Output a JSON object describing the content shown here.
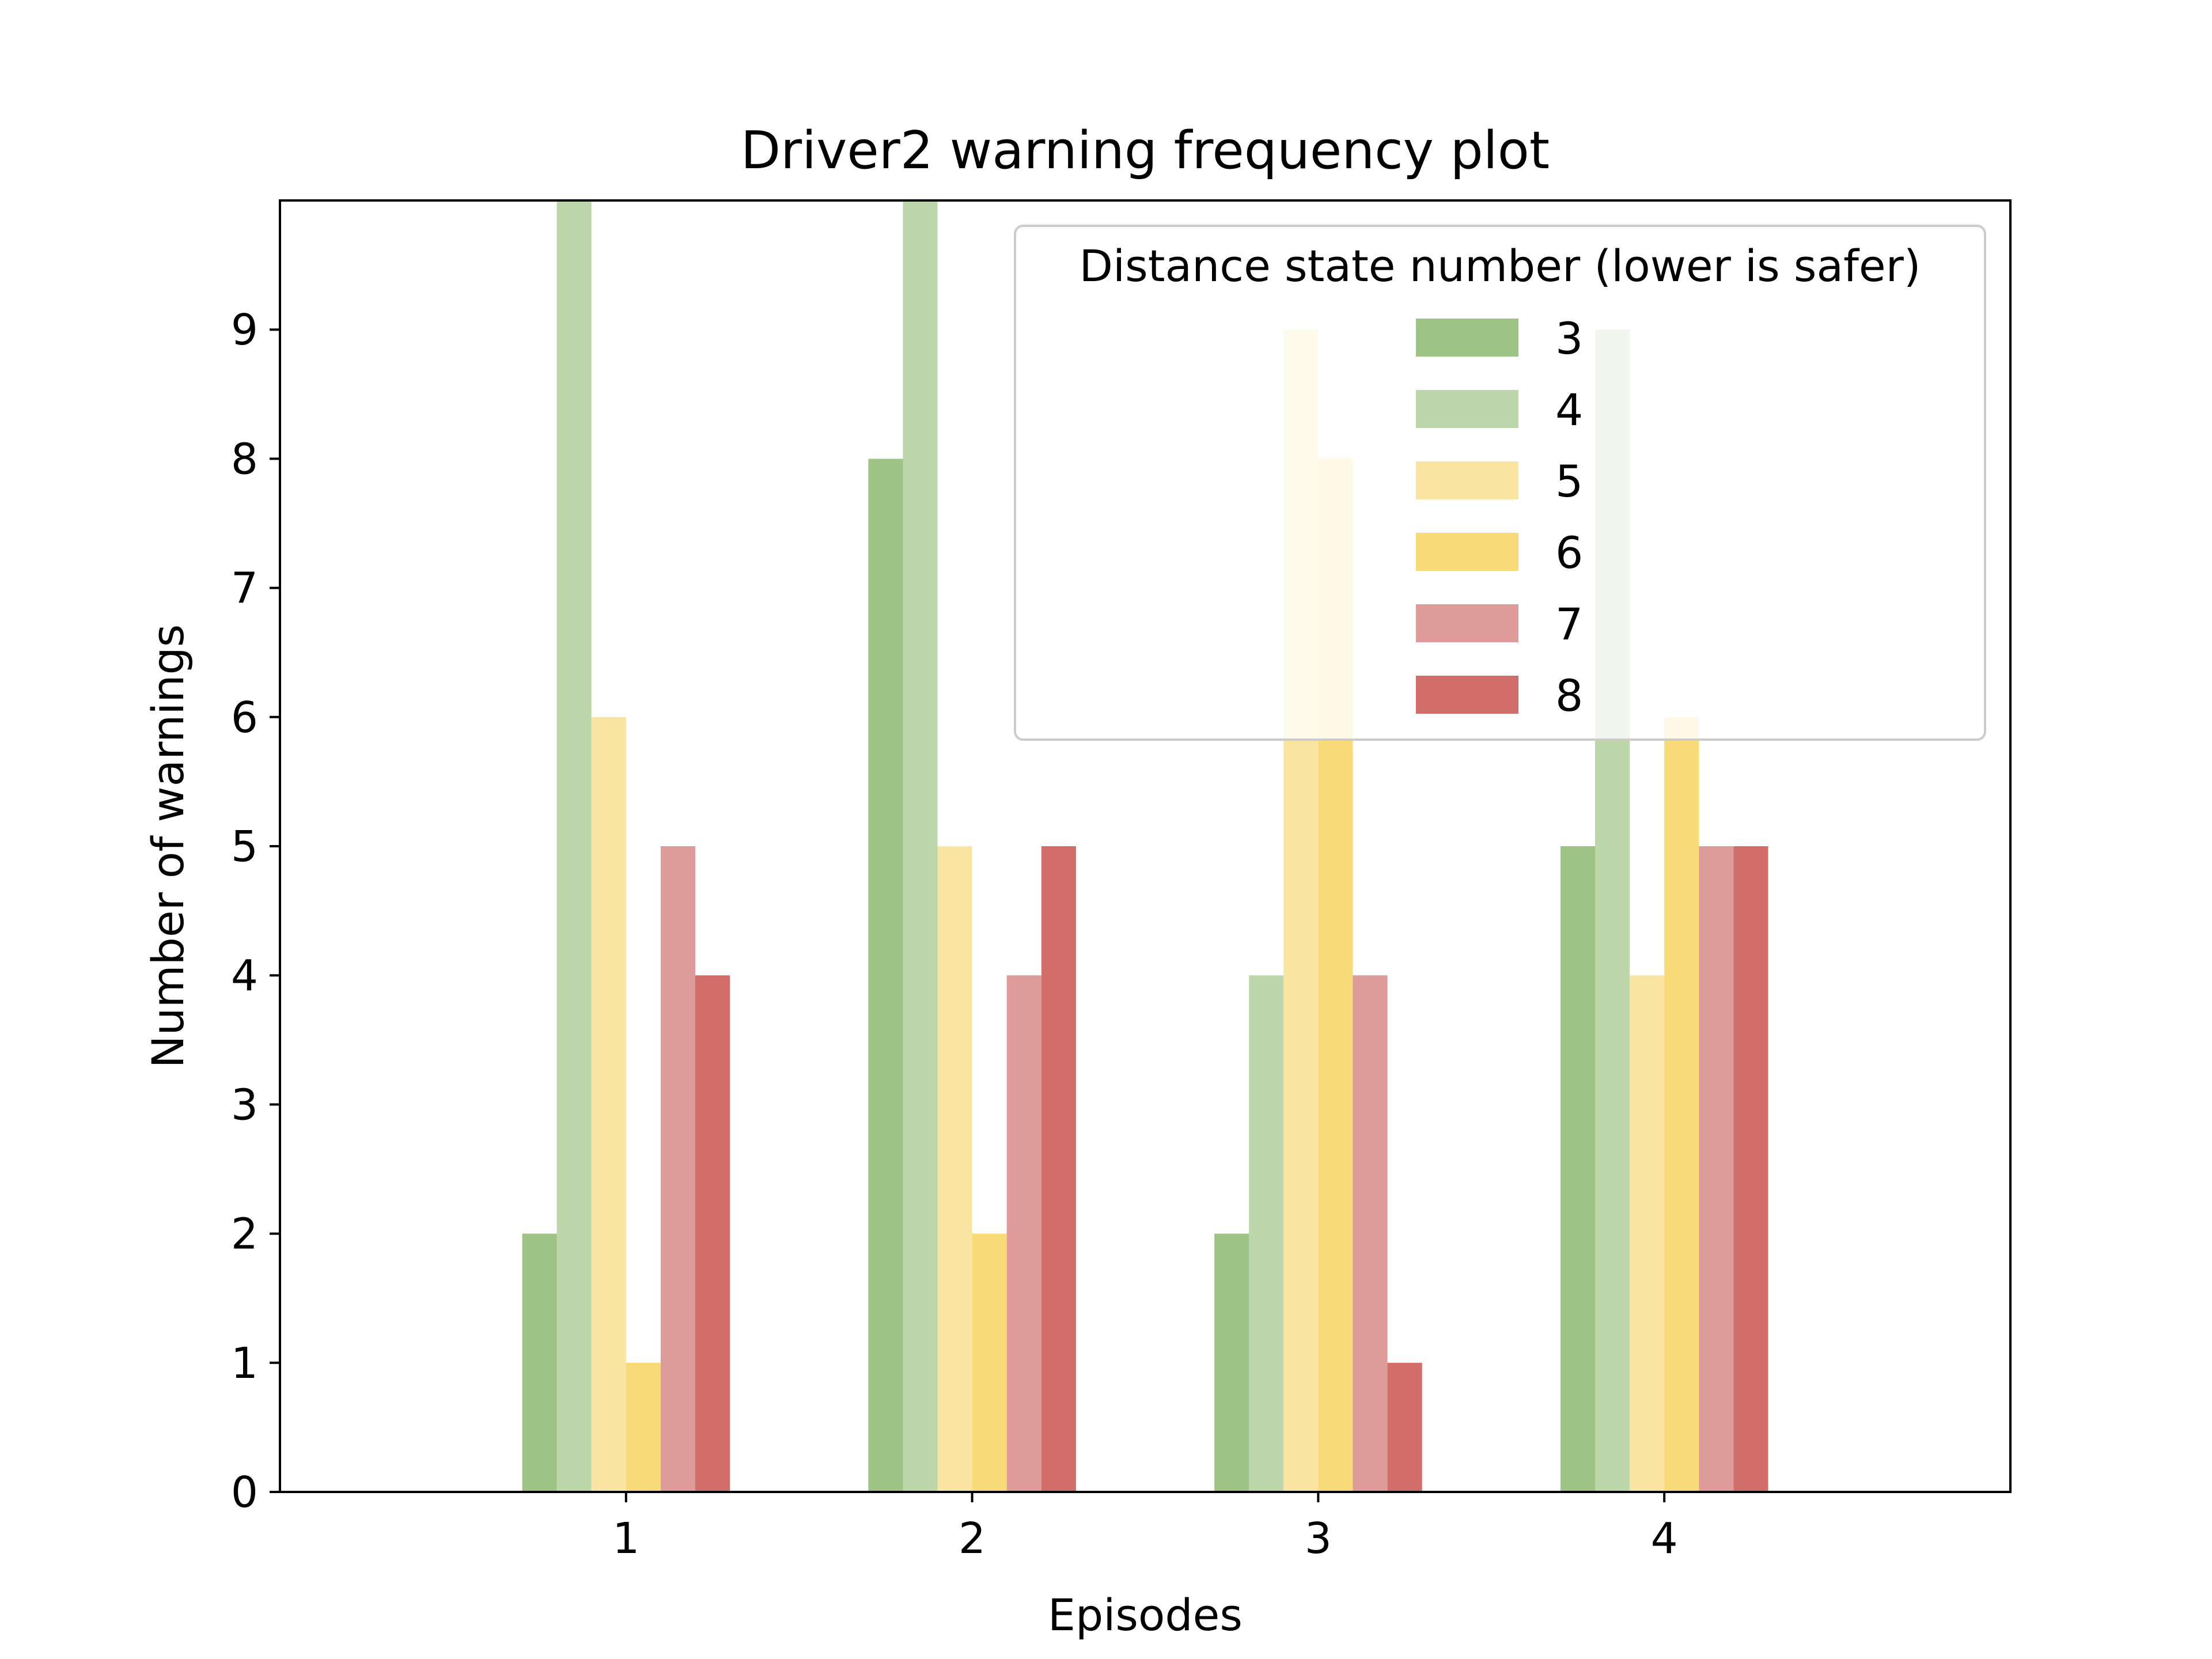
{
  "chart_data": {
    "type": "bar",
    "title": "Driver2 warning frequency plot",
    "xlabel": "Episodes",
    "ylabel": "Number of warnings",
    "categories": [
      "1",
      "2",
      "3",
      "4"
    ],
    "xlim": [
      0,
      5
    ],
    "ylim": [
      0,
      10
    ],
    "yticks": [
      "0",
      "1",
      "2",
      "3",
      "4",
      "5",
      "6",
      "7",
      "8",
      "9"
    ],
    "grid": false,
    "legend": {
      "title": "Distance state number (lower is safer)",
      "placement": "top-right"
    },
    "series": [
      {
        "name": "3",
        "color": "#9ec485",
        "values": [
          2,
          8,
          2,
          5
        ]
      },
      {
        "name": "4",
        "color": "#bcd6aa",
        "values": [
          10,
          10,
          4,
          9
        ]
      },
      {
        "name": "5",
        "color": "#f9e4a2",
        "values": [
          6,
          5,
          9,
          4
        ]
      },
      {
        "name": "6",
        "color": "#f9da78",
        "values": [
          1,
          2,
          8,
          6
        ]
      },
      {
        "name": "7",
        "color": "#df9b99",
        "values": [
          5,
          4,
          4,
          5
        ]
      },
      {
        "name": "8",
        "color": "#d16e69",
        "values": [
          4,
          5,
          1,
          5
        ]
      }
    ]
  }
}
